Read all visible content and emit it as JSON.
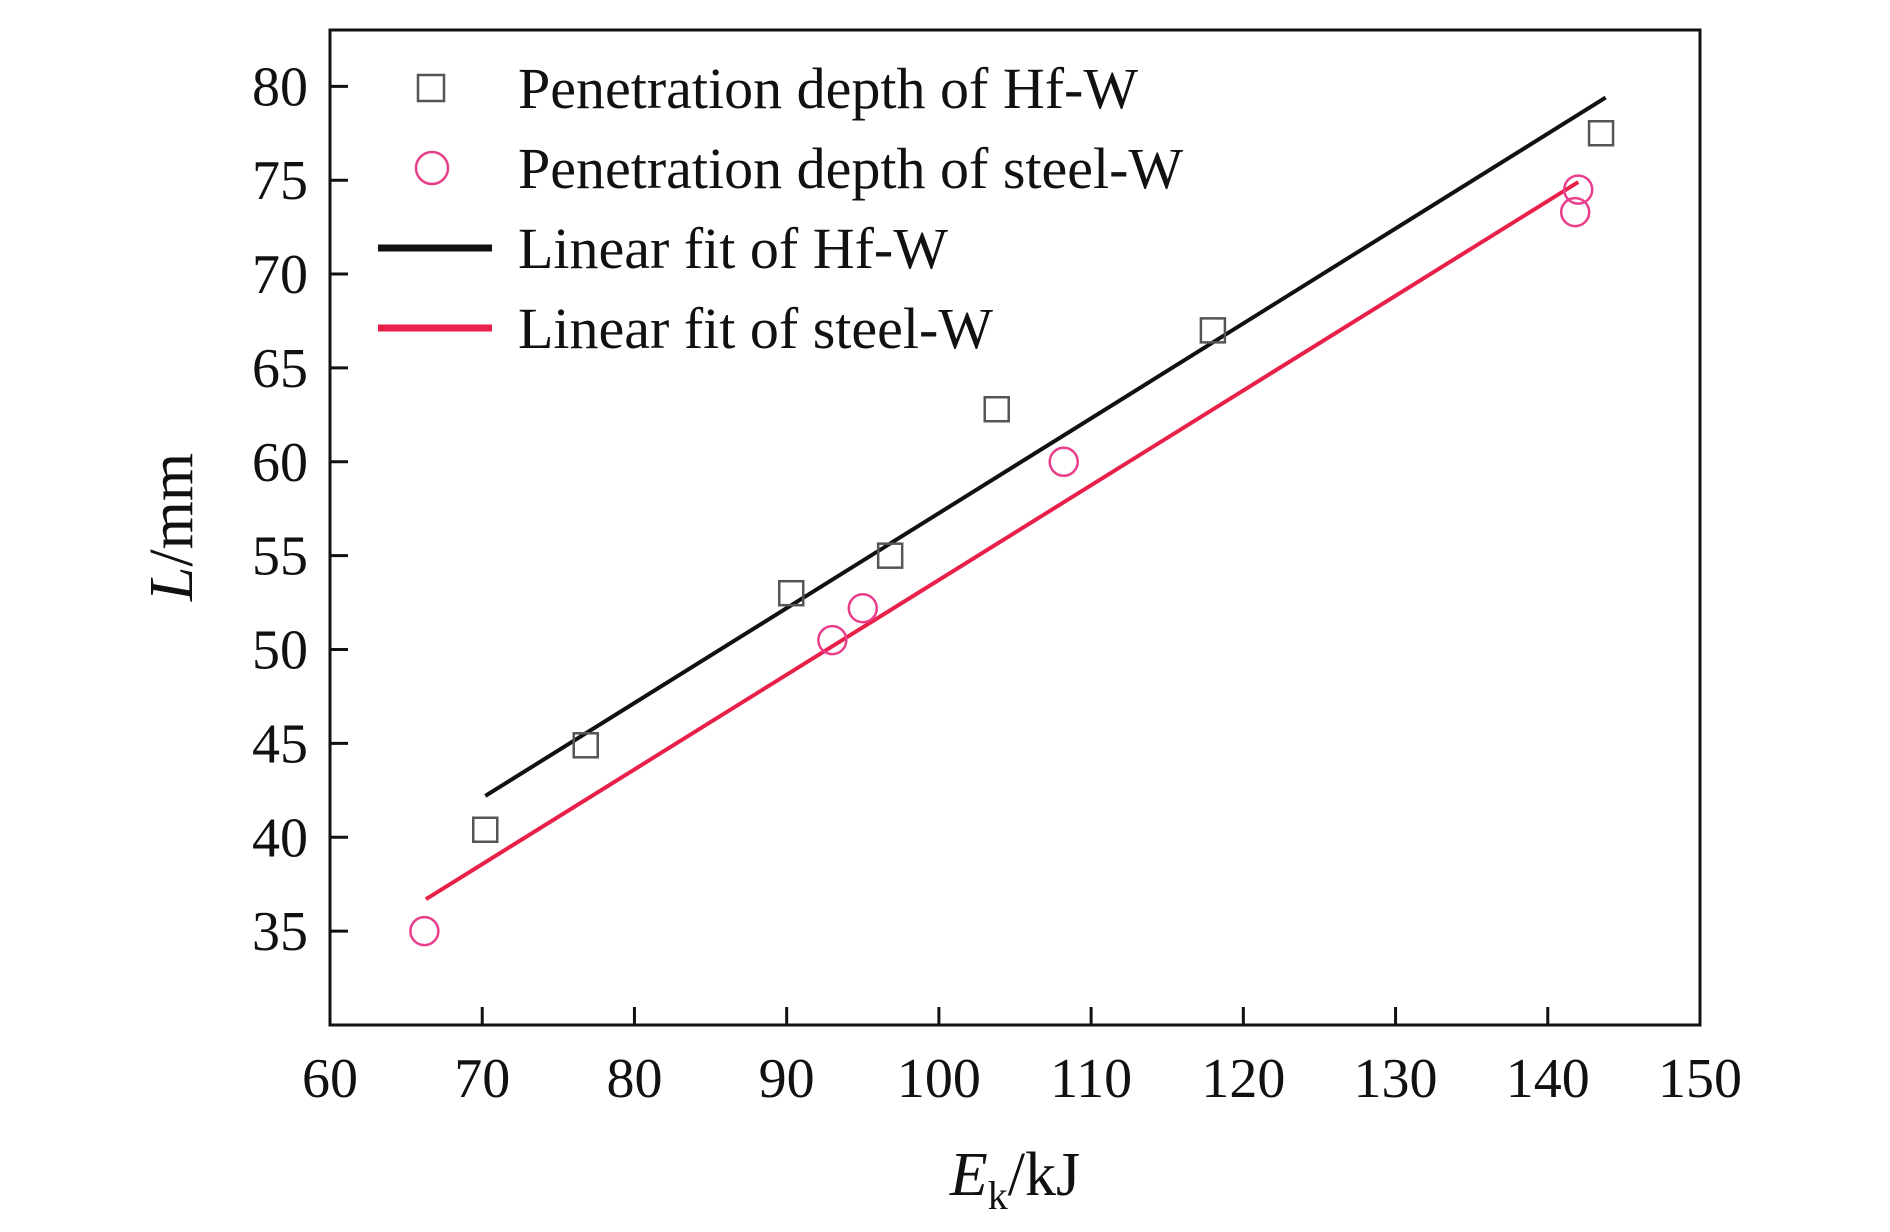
{
  "chart_data": {
    "type": "scatter",
    "xlim": [
      60,
      150
    ],
    "ylim": [
      30,
      83
    ],
    "x_ticks": [
      "60",
      "70",
      "80",
      "90",
      "100",
      "110",
      "120",
      "130",
      "140",
      "150"
    ],
    "y_ticks": [
      "35",
      "40",
      "45",
      "50",
      "55",
      "60",
      "65",
      "70",
      "75",
      "80"
    ],
    "x_tick_values": [
      60,
      70,
      80,
      90,
      100,
      110,
      120,
      130,
      140,
      150
    ],
    "y_tick_values": [
      35,
      40,
      45,
      50,
      55,
      60,
      65,
      70,
      75,
      80
    ],
    "xlabel": {
      "main": "E",
      "sub": "k",
      "unit": "/kJ"
    },
    "ylabel": {
      "main": "L",
      "unit": "/mm"
    },
    "grid": false,
    "legend_position": "top-left",
    "series": [
      {
        "name": "Penetration depth of Hf-W",
        "kind": "points",
        "marker": "square",
        "color": "#555555",
        "x": [
          70.2,
          76.8,
          90.3,
          96.8,
          103.8,
          118.0,
          143.5
        ],
        "y": [
          40.4,
          44.9,
          53.0,
          55.0,
          62.8,
          67.0,
          77.5
        ]
      },
      {
        "name": "Penetration depth of steel-W",
        "kind": "points",
        "marker": "circle",
        "color": "#e83e8c",
        "x": [
          66.2,
          93.0,
          95.0,
          108.2,
          141.8,
          142.0
        ],
        "y": [
          35.0,
          50.5,
          52.2,
          60.0,
          73.3,
          74.5
        ]
      },
      {
        "name": "Linear fit of Hf-W",
        "kind": "line",
        "color": "#111111",
        "x": [
          70.2,
          143.8
        ],
        "y": [
          42.2,
          79.4
        ]
      },
      {
        "name": "Linear fit of steel-W",
        "kind": "line",
        "color": "#e8204a",
        "x": [
          66.3,
          142.0
        ],
        "y": [
          36.7,
          74.9
        ]
      }
    ]
  }
}
